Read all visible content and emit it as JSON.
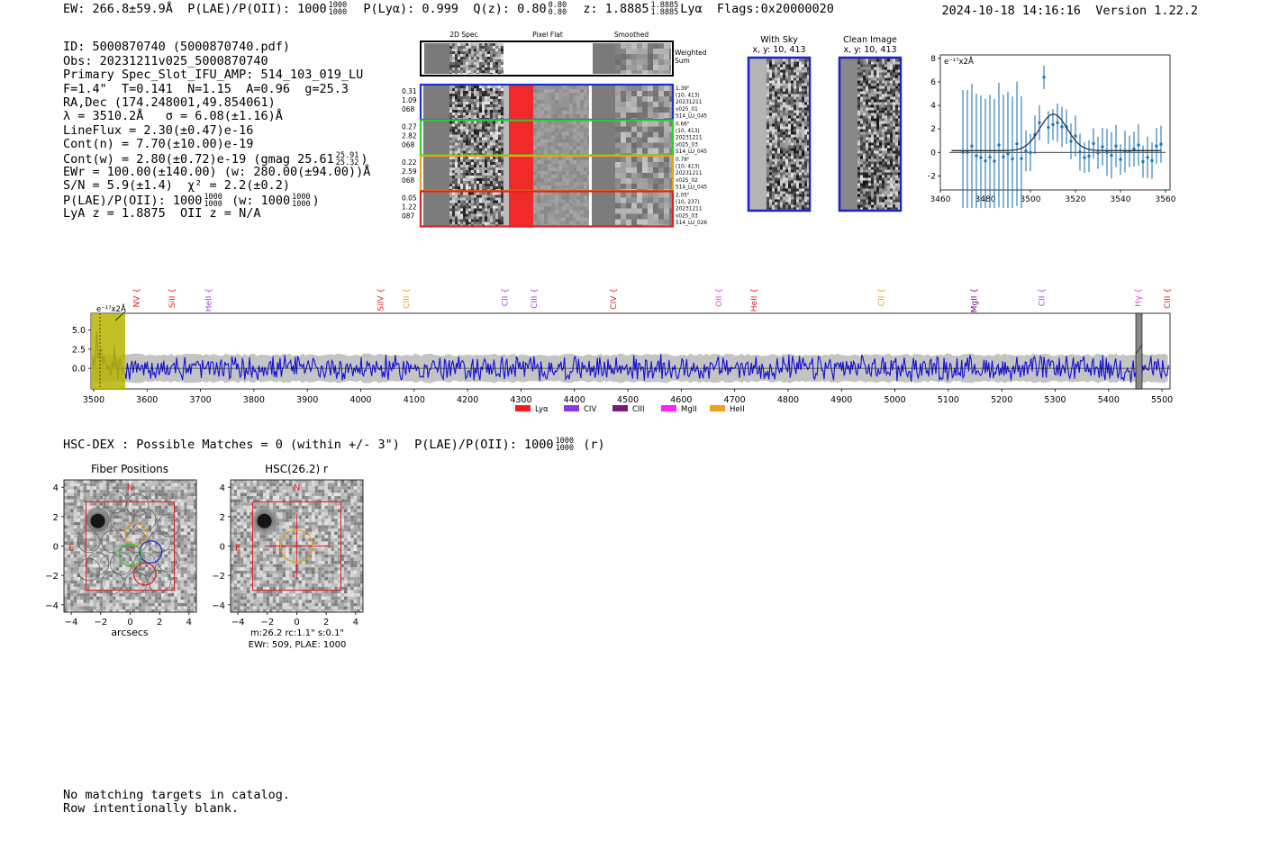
{
  "header": {
    "ew_label": "EW: 266.8±59.9Å",
    "plae_label": "P(LAE)/P(OII): 1000",
    "plae_hi": "1000",
    "plae_lo": "1000",
    "plya_label": "P(Lyα): 0.999",
    "qz_label": "Q(z): 0.80",
    "qz_hi": "0.80",
    "qz_lo": "0.80",
    "z_label": "z: 1.8885",
    "z_hi": "1.8885",
    "z_lo": "1.8885",
    "z_line": "Lyα",
    "flags": "Flags:0x20000020",
    "datetime": "2024-10-18 14:16:16",
    "version": "Version 1.22.2"
  },
  "info": {
    "id": "ID: 5000870740 (5000870740.pdf)",
    "obs": "Obs: 20231211v025_5000870740",
    "primary": "Primary Spec_Slot_IFU_AMP: 514_103_019_LU",
    "params": "F=1.4\"  T=0.141  N=1.15  A=0.96  g=25.3",
    "radec": "RA,Dec (174.248001,49.854061)",
    "lambda": "λ = 3510.2Å   σ = 6.08(±1.16)Å",
    "lineflux": "LineFlux = 2.30(±0.47)e-16",
    "contn": "Cont(n) = 7.70(±10.00)e-19",
    "contw": "Cont(w) = 2.80(±0.72)e-19 (gmag 25.61",
    "gmag_hi": "25.91",
    "gmag_lo": "25.32",
    "contw_end": ")",
    "ewr": "EWr = 100.00(±140.00) (w: 280.00(±94.00))Å",
    "sn": "S/N = 5.9(±1.4)  χ² = 2.2(±0.2)",
    "plae": "P(LAE)/P(OII): 1000",
    "plae_hi": "1000",
    "plae_lo": "1000",
    "plae_w": "(w: 1000",
    "plae_w_hi": "1000",
    "plae_w_lo": "1000",
    "plae_w_end": ")",
    "lya": "LyA z = 1.8875  OII z = N/A"
  },
  "cutouts": {
    "col_titles": [
      "2D Spec",
      "Pixel Flat",
      "Smoothed"
    ],
    "weighted_sum": "Weighted Sum",
    "rows": [
      {
        "color": "#1f2fd0",
        "left": [
          "0.31",
          "1.09",
          "068"
        ],
        "right": [
          "1.39\"",
          "(10, 413)",
          "20231211",
          "v025_01",
          "514_LU_045"
        ]
      },
      {
        "color": "#2bd12b",
        "left": [
          "0.27",
          "2.82",
          "068"
        ],
        "right": [
          "0.66\"",
          "(10, 413)",
          "20231211",
          "v025_03",
          "514_LU_045"
        ]
      },
      {
        "color": "#e8a21a",
        "left": [
          "0.22",
          "2.59",
          "068"
        ],
        "right": [
          "0.78\"",
          "(10, 413)",
          "20231211",
          "v025_02",
          "514_LU_045"
        ]
      },
      {
        "color": "#e02020",
        "left": [
          "0.05",
          "1.22",
          "087"
        ],
        "right": [
          "2.05\"",
          "(10, 237)",
          "20231211",
          "v025_03",
          "514_LU_026"
        ]
      }
    ]
  },
  "sky_panels": {
    "with_sky": "With Sky",
    "clean": "Clean Image",
    "coords": "x, y: 10, 413"
  },
  "fit_plot": {
    "unit": "e⁻¹⁷x2Å",
    "xticks": [
      "3460",
      "3480",
      "3500",
      "3520",
      "3540",
      "3560"
    ],
    "yticks": [
      "8",
      "6",
      "4",
      "2",
      "0",
      "−2"
    ]
  },
  "full_spec": {
    "unit": "e⁻¹⁷x2Å",
    "yticks": [
      "5.0",
      "2.5",
      "0.0"
    ],
    "xticks": [
      "3500",
      "3600",
      "3700",
      "3800",
      "3900",
      "4000",
      "4100",
      "4200",
      "4300",
      "4400",
      "4500",
      "4600",
      "4700",
      "4800",
      "4900",
      "5000",
      "5100",
      "5200",
      "5300",
      "5400",
      "5500"
    ],
    "lines": [
      {
        "label": "NV",
        "color": "#e02020",
        "wave": 3580
      },
      {
        "label": "SiII",
        "color": "#e02020",
        "wave": 3647
      },
      {
        "label": "HeII",
        "color": "#a040e0",
        "wave": 3715
      },
      {
        "label": "SiIV",
        "color": "#e02020",
        "wave": 4037
      },
      {
        "label": "CIII",
        "color": "#f0a020",
        "wave": 4085
      },
      {
        "label": "CII",
        "color": "#a040e0",
        "wave": 4270
      },
      {
        "label": "CIII",
        "color": "#a040e0",
        "wave": 4325
      },
      {
        "label": "CIV",
        "color": "#e02020",
        "wave": 4473
      },
      {
        "label": "OII",
        "color": "#e040e0",
        "wave": 4670
      },
      {
        "label": "HeII",
        "color": "#e02020",
        "wave": 4736
      },
      {
        "label": "CII",
        "color": "#f0a020",
        "wave": 4975
      },
      {
        "label": "MgII",
        "color": "#800080",
        "wave": 5148
      },
      {
        "label": "CII",
        "color": "#a040e0",
        "wave": 5275
      },
      {
        "label": "Hγ",
        "color": "#e040e0",
        "wave": 5455
      },
      {
        "label": "CIII",
        "color": "#e02020",
        "wave": 5510
      }
    ],
    "legend": [
      {
        "label": "Lyα",
        "color": "#ff1a1a"
      },
      {
        "label": "CIV",
        "color": "#8a3ae0"
      },
      {
        "label": "CIII",
        "color": "#7a1a7a"
      },
      {
        "label": "MgII",
        "color": "#ff20ff"
      },
      {
        "label": "HeII",
        "color": "#f0a020"
      }
    ]
  },
  "hsc": {
    "line": "HSC-DEX : Possible Matches = 0 (within +/- 3\")  P(LAE)/P(OII): 1000",
    "line_hi": "1000",
    "line_lo": "1000",
    "line_end": "(r)",
    "fiber_title": "Fiber Positions",
    "hsc_title": "HSC(26.2) r",
    "xlabel": "arcsecs",
    "north": "N",
    "east": "E",
    "ticks": [
      "4",
      "2",
      "0",
      "−2",
      "−4"
    ],
    "xticks": [
      "−4",
      "−2",
      "0",
      "2",
      "4"
    ],
    "caption1": "m:26.2 rc:1.1\"  s:0.1\"",
    "caption2": "EWr: 509, PLAE: 1000"
  },
  "footer": {
    "line1": "No matching targets in catalog.",
    "line2": "Row intentionally blank."
  }
}
